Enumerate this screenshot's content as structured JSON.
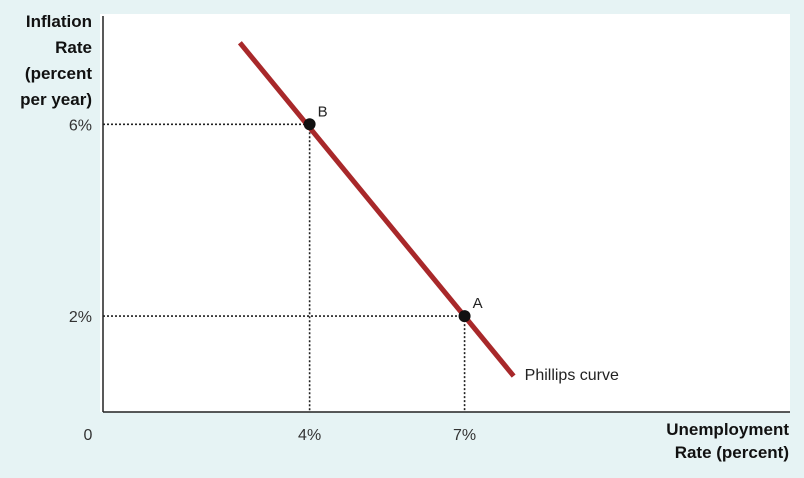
{
  "chart_data": {
    "type": "line",
    "ylabel_lines": [
      "Inflation",
      "Rate",
      "(percent",
      "per year)"
    ],
    "xlabel_lines": [
      "Unemployment",
      "Rate (percent)"
    ],
    "origin_label": "0",
    "x_ticks": [
      {
        "value": 4,
        "label": "4%"
      },
      {
        "value": 7,
        "label": "7%"
      }
    ],
    "y_ticks": [
      {
        "value": 2,
        "label": "2%"
      },
      {
        "value": 6,
        "label": "6%"
      }
    ],
    "xlim": [
      0,
      13.3
    ],
    "ylim": [
      0,
      8.3
    ],
    "series": [
      {
        "name": "Phillips curve",
        "color": "#a8282a",
        "points": [
          {
            "x": 2.65,
            "y": 7.7
          },
          {
            "x": 7.95,
            "y": 0.75
          }
        ]
      }
    ],
    "points": [
      {
        "label": "B",
        "x": 4,
        "y": 6
      },
      {
        "label": "A",
        "x": 7,
        "y": 2
      }
    ],
    "grid": false
  }
}
